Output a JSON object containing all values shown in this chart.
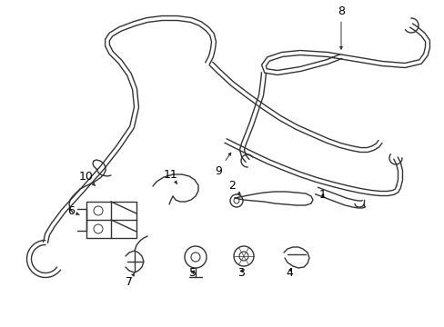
{
  "background_color": "#ffffff",
  "line_color": "#333333",
  "label_color": "#000000",
  "fig_width": 4.89,
  "fig_height": 3.6,
  "dpi": 100
}
